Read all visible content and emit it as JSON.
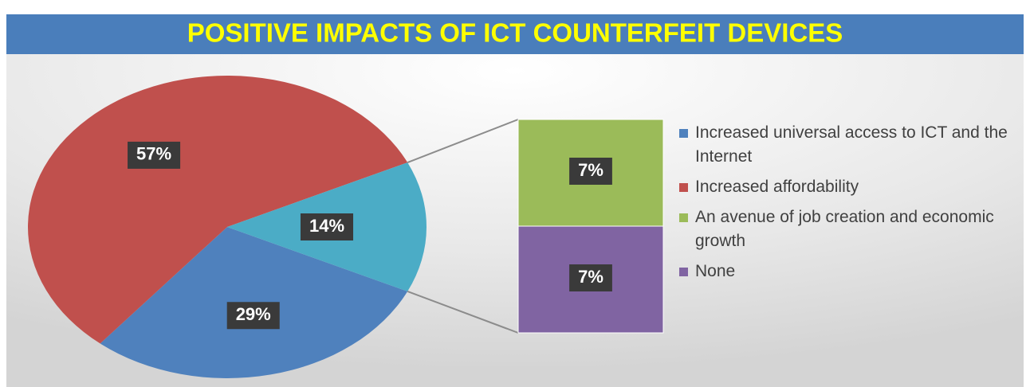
{
  "chart_data": {
    "type": "pie_of_bar",
    "title": "POSITIVE IMPACTS OF ICT COUNTERFEIT DEVICES",
    "categories": [
      "Increased universal access to ICT and the Internet",
      "Increased affordability",
      "An avenue of job creation and economic growth",
      "None"
    ],
    "values": [
      29,
      57,
      7,
      7
    ],
    "value_labels": [
      "29%",
      "57%",
      "7%",
      "7%"
    ],
    "colors": [
      "#4f81bd",
      "#c0504d",
      "#9bbb59",
      "#8064a2"
    ],
    "split_index": 2,
    "other_value": 14,
    "other_label": "14%",
    "other_color": "#4bacc6",
    "legend": "right"
  }
}
